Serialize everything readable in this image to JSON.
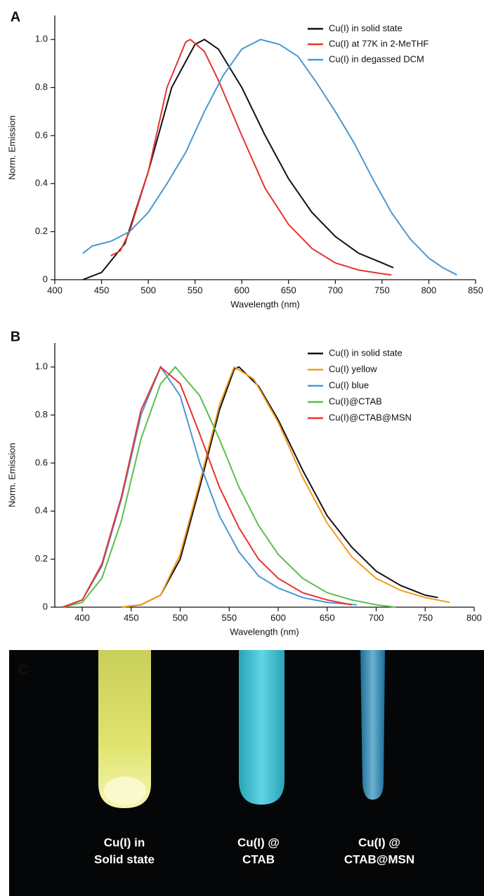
{
  "chart_data": [
    {
      "type": "line",
      "panel_label": "A",
      "x_label": "Wavelength (nm)",
      "y_label": "Norm. Emission",
      "xlim": [
        400,
        850
      ],
      "ylim": [
        0,
        1.1
      ],
      "grid": false,
      "legend": "top-right",
      "xticks": [
        400,
        450,
        500,
        550,
        600,
        650,
        700,
        750,
        800,
        850
      ],
      "yticks": [
        0,
        0.2,
        0.4,
        0.6,
        0.8,
        {
          "value": 1,
          "label": "1.0"
        }
      ],
      "series": [
        {
          "name": "Cu(I) in solid state",
          "color": "#111111",
          "x": [
            430,
            450,
            475,
            500,
            525,
            550,
            560,
            575,
            600,
            625,
            650,
            675,
            700,
            725,
            750,
            762
          ],
          "values": [
            0.0,
            0.03,
            0.15,
            0.45,
            0.8,
            0.98,
            1.0,
            0.96,
            0.8,
            0.6,
            0.42,
            0.28,
            0.18,
            0.11,
            0.07,
            0.05
          ]
        },
        {
          "name": "Cu(I) at 77K in 2-MeTHF",
          "color": "#e8332f",
          "x": [
            460,
            470,
            480,
            500,
            520,
            540,
            545,
            560,
            575,
            600,
            625,
            650,
            675,
            700,
            725,
            750,
            760
          ],
          "values": [
            0.1,
            0.12,
            0.2,
            0.45,
            0.8,
            0.99,
            1.0,
            0.95,
            0.83,
            0.6,
            0.38,
            0.23,
            0.13,
            0.07,
            0.04,
            0.025,
            0.02
          ]
        },
        {
          "name": "Cu(I) in degassed DCM",
          "color": "#4a98d0",
          "x": [
            430,
            440,
            460,
            480,
            500,
            520,
            540,
            560,
            580,
            600,
            620,
            640,
            660,
            680,
            700,
            720,
            740,
            760,
            780,
            800,
            815,
            830
          ],
          "values": [
            0.11,
            0.14,
            0.16,
            0.2,
            0.28,
            0.4,
            0.53,
            0.7,
            0.85,
            0.96,
            1.0,
            0.98,
            0.93,
            0.82,
            0.7,
            0.57,
            0.42,
            0.28,
            0.17,
            0.09,
            0.05,
            0.02
          ]
        }
      ]
    },
    {
      "type": "line",
      "panel_label": "B",
      "x_label": "Wavelength (nm)",
      "y_label": "Norm. Emission",
      "xlim": [
        372,
        800
      ],
      "ylim": [
        0,
        1.1
      ],
      "grid": false,
      "legend": "top-right",
      "xticks": [
        400,
        450,
        500,
        550,
        600,
        650,
        700,
        750,
        800
      ],
      "yticks": [
        0,
        0.2,
        0.4,
        0.6,
        0.8,
        {
          "value": 1,
          "label": "1.0"
        }
      ],
      "series": [
        {
          "name": "Cu(I) in solid state",
          "color": "#111111",
          "x": [
            440,
            460,
            480,
            500,
            520,
            540,
            555,
            560,
            580,
            600,
            625,
            650,
            675,
            700,
            725,
            750,
            763
          ],
          "values": [
            0.0,
            0.01,
            0.05,
            0.2,
            0.5,
            0.82,
            0.99,
            1.0,
            0.92,
            0.78,
            0.57,
            0.38,
            0.25,
            0.15,
            0.09,
            0.05,
            0.04
          ]
        },
        {
          "name": "Cu(I) yellow",
          "color": "#f59a1b",
          "x": [
            440,
            460,
            480,
            500,
            520,
            540,
            555,
            575,
            600,
            625,
            650,
            675,
            700,
            725,
            750,
            775
          ],
          "values": [
            0.0,
            0.01,
            0.05,
            0.22,
            0.52,
            0.84,
            1.0,
            0.95,
            0.77,
            0.54,
            0.35,
            0.21,
            0.12,
            0.07,
            0.04,
            0.02
          ]
        },
        {
          "name": "Cu(I) blue",
          "color": "#4a98d0",
          "x": [
            380,
            400,
            420,
            440,
            460,
            480,
            500,
            520,
            540,
            560,
            580,
            600,
            625,
            650,
            680
          ],
          "values": [
            0.0,
            0.03,
            0.17,
            0.45,
            0.8,
            1.0,
            0.88,
            0.6,
            0.38,
            0.23,
            0.13,
            0.08,
            0.04,
            0.02,
            0.01
          ]
        },
        {
          "name": "Cu(I)@CTAB",
          "color": "#5cbd4e",
          "x": [
            380,
            400,
            420,
            440,
            460,
            480,
            495,
            520,
            540,
            560,
            580,
            600,
            625,
            650,
            675,
            700,
            720
          ],
          "values": [
            0.0,
            0.02,
            0.12,
            0.36,
            0.7,
            0.93,
            1.0,
            0.88,
            0.7,
            0.5,
            0.34,
            0.22,
            0.12,
            0.06,
            0.03,
            0.01,
            0.0
          ]
        },
        {
          "name": "Cu(I)@CTAB@MSN",
          "color": "#e8332f",
          "x": [
            380,
            400,
            420,
            440,
            460,
            480,
            500,
            520,
            540,
            560,
            580,
            600,
            625,
            650,
            675
          ],
          "values": [
            0.0,
            0.03,
            0.18,
            0.46,
            0.82,
            1.0,
            0.93,
            0.72,
            0.5,
            0.33,
            0.2,
            0.12,
            0.06,
            0.03,
            0.01
          ]
        }
      ]
    }
  ],
  "photo": {
    "panel_label": "C",
    "labels": [
      [
        "Cu(I) in",
        "Solid state"
      ],
      [
        "Cu(I) @",
        "CTAB"
      ],
      [
        "Cu(I) @",
        "CTAB@MSN"
      ]
    ]
  }
}
